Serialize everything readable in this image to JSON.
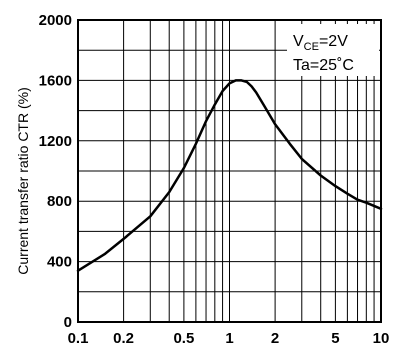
{
  "chart_data": {
    "type": "line",
    "title": "",
    "xlabel": "",
    "ylabel": "Current transfer ratio CTR (%)",
    "x_scale": "log",
    "xlim": [
      0.1,
      10
    ],
    "ylim": [
      0,
      2000
    ],
    "grid": true,
    "x_ticks": [
      0.1,
      0.2,
      0.5,
      1,
      2,
      5,
      10
    ],
    "x_tick_labels": [
      "0.1",
      "0.2",
      "0.5",
      "1",
      "2",
      "5",
      "10"
    ],
    "y_ticks": [
      0,
      400,
      800,
      1200,
      1600,
      2000
    ],
    "y_tick_labels": [
      "0",
      "400",
      "800",
      "1200",
      "1600",
      "2000"
    ],
    "annotations": {
      "vce_main": "V",
      "vce_sub": "CE",
      "vce_value": "=2V",
      "ta": "Ta=25˚C"
    },
    "series": [
      {
        "x": [
          0.1,
          0.15,
          0.2,
          0.3,
          0.4,
          0.5,
          0.6,
          0.7,
          0.8,
          0.9,
          1.0,
          1.1,
          1.2,
          1.3,
          1.4,
          1.5,
          1.7,
          2.0,
          2.5,
          3.0,
          4.0,
          5.0,
          6.0,
          7.0,
          8.0,
          10.0
        ],
        "y": [
          340,
          450,
          550,
          700,
          860,
          1020,
          1180,
          1330,
          1440,
          1530,
          1580,
          1600,
          1600,
          1590,
          1560,
          1520,
          1430,
          1310,
          1180,
          1080,
          970,
          900,
          850,
          810,
          790,
          750
        ]
      }
    ]
  }
}
